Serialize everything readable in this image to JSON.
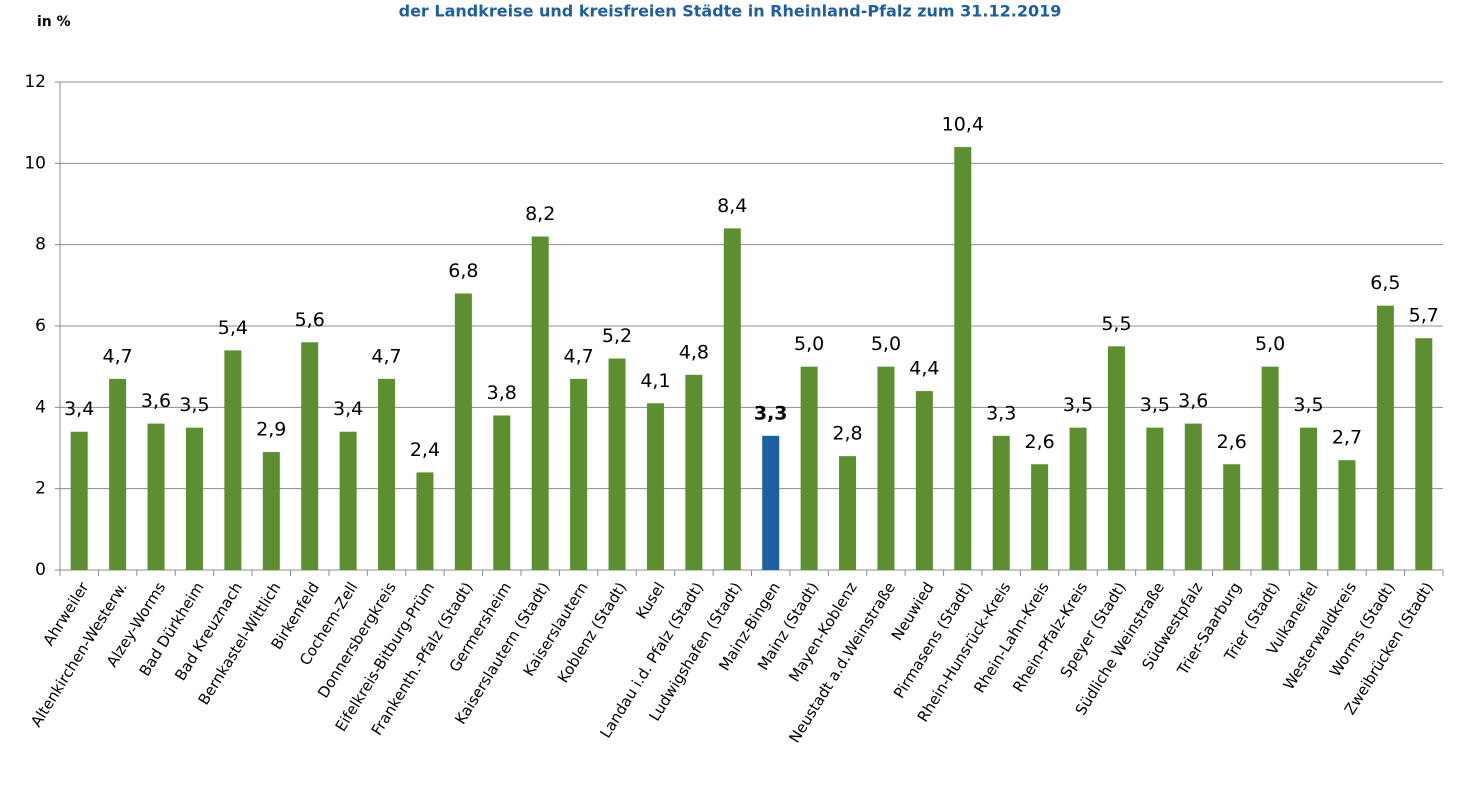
{
  "chart_data": {
    "type": "bar",
    "title": "der Landkreise und kreisfreien Städte in Rheinland-Pfalz zum 31.12.2019",
    "y_label": "in %",
    "categories": [
      "Ahrweiler",
      "Altenkirchen-Westerw.",
      "Alzey-Worms",
      "Bad Dürkheim",
      "Bad Kreuznach",
      "Bernkastel-Wittlich",
      "Birkenfeld",
      "Cochem-Zell",
      "Donnersbergkreis",
      "Eifelkreis-Bitburg-Prüm",
      "Frankenth.-Pfalz (Stadt)",
      "Germersheim",
      "Kaiserslautern (Stadt)",
      "Kaiserslautern",
      "Koblenz (Stadt)",
      "Kusel",
      "Landau i.d. Pfalz (Stadt)",
      "Ludwigshafen (Stadt)",
      "Mainz-Bingen",
      "Mainz (Stadt)",
      "Mayen-Koblenz",
      "Neustadt a.d.Weinstraße",
      "Neuwied",
      "Pirmasens (Stadt)",
      "Rhein-Hunsrück-Kreis",
      "Rhein-Lahn-Kreis",
      "Rhein-Pfalz-Kreis",
      "Speyer (Stadt)",
      "Südliche Weinstraße",
      "Südwestpfalz",
      "Trier-Saarburg",
      "Trier (Stadt)",
      "Vulkaneifel",
      "Westerwaldkreis",
      "Worms (Stadt)",
      "Zweibrücken (Stadt)"
    ],
    "values": [
      3.4,
      4.7,
      3.6,
      3.5,
      5.4,
      2.9,
      5.6,
      3.4,
      4.7,
      2.4,
      6.8,
      3.8,
      8.2,
      4.7,
      5.2,
      4.1,
      4.8,
      8.4,
      3.3,
      5.0,
      2.8,
      5.0,
      4.4,
      10.4,
      3.3,
      2.6,
      3.5,
      5.5,
      3.5,
      3.6,
      2.6,
      5.0,
      3.5,
      2.7,
      6.5,
      5.7
    ],
    "value_labels": [
      "3,4",
      "4,7",
      "3,6",
      "3,5",
      "5,4",
      "2,9",
      "5,6",
      "3,4",
      "4,7",
      "2,4",
      "6,8",
      "3,8",
      "8,2",
      "4,7",
      "5,2",
      "4,1",
      "4,8",
      "8,4",
      "3,3",
      "5,0",
      "2,8",
      "5,0",
      "4,4",
      "10,4",
      "3,3",
      "2,6",
      "3,5",
      "5,5",
      "3,5",
      "3,6",
      "2,6",
      "5,0",
      "3,5",
      "2,7",
      "6,5",
      "5,7"
    ],
    "color": "#5b8f2f",
    "colors": [
      "#5b8f2f",
      "#5b8f2f",
      "#5b8f2f",
      "#5b8f2f",
      "#5b8f2f",
      "#5b8f2f",
      "#5b8f2f",
      "#5b8f2f",
      "#5b8f2f",
      "#5b8f2f",
      "#5b8f2f",
      "#5b8f2f",
      "#5b8f2f",
      "#5b8f2f",
      "#5b8f2f",
      "#5b8f2f",
      "#5b8f2f",
      "#5b8f2f",
      "#1c5fa3",
      "#5b8f2f",
      "#5b8f2f",
      "#5b8f2f",
      "#5b8f2f",
      "#5b8f2f",
      "#5b8f2f",
      "#5b8f2f",
      "#5b8f2f",
      "#5b8f2f",
      "#5b8f2f",
      "#5b8f2f",
      "#5b8f2f",
      "#5b8f2f",
      "#5b8f2f",
      "#5b8f2f",
      "#5b8f2f",
      "#5b8f2f"
    ],
    "ylim": [
      0,
      12
    ],
    "yticks": [
      0,
      2,
      4,
      6,
      8,
      10,
      12
    ],
    "grid": true
  }
}
